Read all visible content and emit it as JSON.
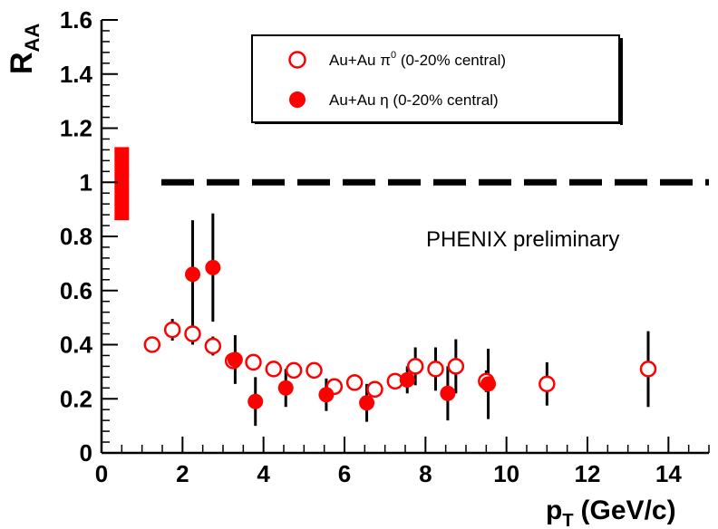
{
  "chart_data": {
    "type": "scatter",
    "xlabel": "p",
    "xlabel_sub": "T",
    "xlabel_unit": "(GeV/c)",
    "ylabel": "R",
    "ylabel_sub": "AA",
    "xlim": [
      0,
      15
    ],
    "ylim": [
      0,
      1.6
    ],
    "x_ticks": [
      0,
      2,
      4,
      6,
      8,
      10,
      12,
      14
    ],
    "x_tick_labels": [
      "0",
      "2",
      "4",
      "6",
      "8",
      "10",
      "12",
      "14"
    ],
    "y_ticks": [
      0,
      0.2,
      0.4,
      0.6,
      0.8,
      1,
      1.2,
      1.4,
      1.6
    ],
    "y_tick_labels": [
      "0",
      "0.2",
      "0.4",
      "0.6",
      "0.8",
      "1",
      "1.2",
      "1.4",
      "1.6"
    ],
    "reference_line": 1.0,
    "normalization_uncertainty": {
      "x": 0.5,
      "low": 0.86,
      "high": 1.13,
      "color": "#ff0000"
    },
    "annotation": "PHENIX preliminary",
    "legend_position": "top-right",
    "series": [
      {
        "name": "Au+Au π⁰ (0-20% central)",
        "legend_main": "Au+Au π",
        "legend_sup": "0",
        "legend_rest": " (0-20% central)",
        "marker": "open-circle",
        "color": "#ff0000",
        "x": [
          1.25,
          1.75,
          2.25,
          2.75,
          3.25,
          3.75,
          4.25,
          4.75,
          5.25,
          5.75,
          6.25,
          6.75,
          7.25,
          7.75,
          8.25,
          8.75,
          9.5,
          11.0,
          13.5
        ],
        "y": [
          0.4,
          0.455,
          0.44,
          0.395,
          0.34,
          0.335,
          0.31,
          0.305,
          0.305,
          0.245,
          0.26,
          0.235,
          0.265,
          0.32,
          0.31,
          0.32,
          0.265,
          0.255,
          0.31
        ],
        "y_err": [
          0.03,
          0.04,
          0.04,
          0.035,
          0.03,
          0.03,
          0.03,
          0.03,
          0.03,
          0.03,
          0.03,
          0.03,
          0.03,
          0.07,
          0.08,
          0.1,
          0.04,
          0.08,
          0.14
        ]
      },
      {
        "name": "Au+Au η (0-20% central)",
        "legend_main": "Au+Au η",
        "legend_sup": "",
        "legend_rest": " (0-20% central)",
        "marker": "filled-circle",
        "color": "#ff0000",
        "x": [
          2.25,
          2.75,
          3.3,
          3.8,
          4.55,
          5.55,
          6.55,
          7.55,
          8.55,
          9.55
        ],
        "y": [
          0.66,
          0.685,
          0.345,
          0.19,
          0.24,
          0.215,
          0.185,
          0.27,
          0.22,
          0.255
        ],
        "y_err": [
          0.2,
          0.2,
          0.09,
          0.09,
          0.07,
          0.06,
          0.07,
          0.05,
          0.1,
          0.13
        ]
      }
    ]
  }
}
